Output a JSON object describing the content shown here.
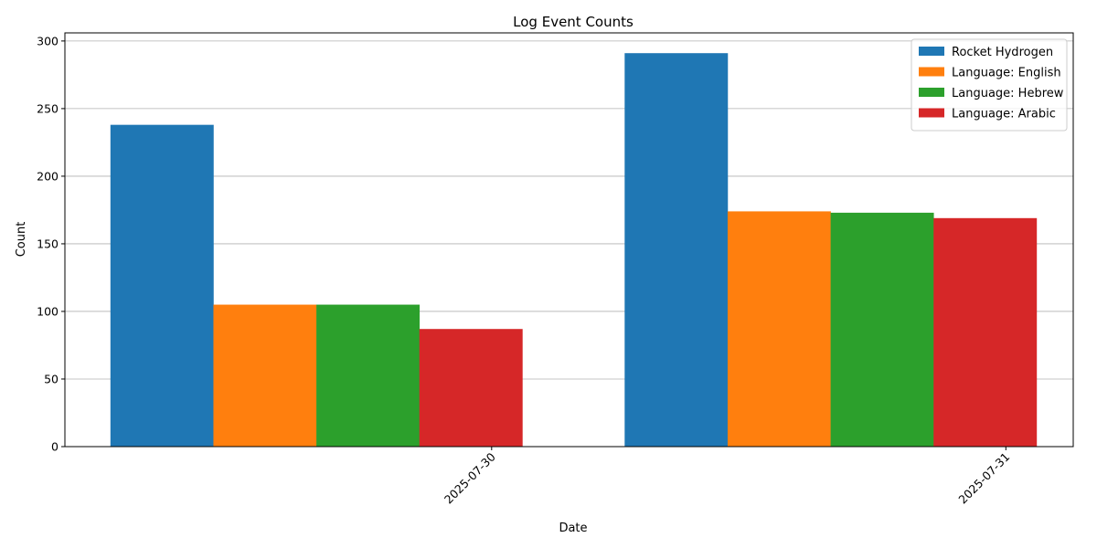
{
  "chart_data": {
    "type": "bar",
    "title": "Log Event Counts",
    "xlabel": "Date",
    "ylabel": "Count",
    "categories": [
      "2025-07-30",
      "2025-07-31"
    ],
    "series": [
      {
        "name": "Rocket Hydrogen",
        "color": "#1f77b4",
        "values": [
          238,
          291
        ]
      },
      {
        "name": "Language: English",
        "color": "#ff7f0e",
        "values": [
          105,
          174
        ]
      },
      {
        "name": "Language: Hebrew",
        "color": "#2ca02c",
        "values": [
          105,
          173
        ]
      },
      {
        "name": "Language: Arabic",
        "color": "#d62728",
        "values": [
          87,
          169
        ]
      }
    ],
    "ylim": [
      0,
      306
    ],
    "yticks": [
      0,
      50,
      100,
      150,
      200,
      250,
      300
    ],
    "grid": "y",
    "legend": "top-right"
  }
}
